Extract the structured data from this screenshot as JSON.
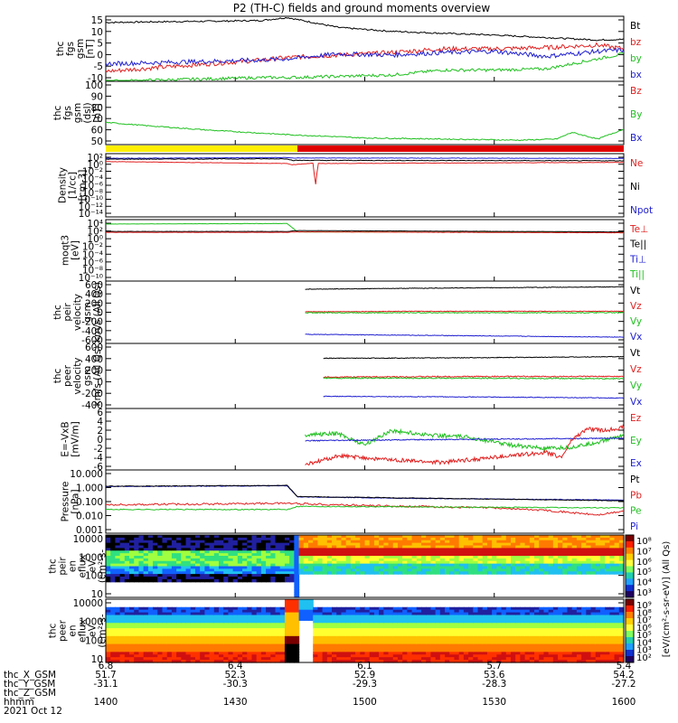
{
  "title": "P2 (TH-C) fields and ground moments overview",
  "chart_data": [
    {
      "type": "line",
      "ylabel": [
        "thc",
        "fgs",
        "gsm",
        "[nT]"
      ],
      "ylim": [
        -10,
        16
      ],
      "yticks": [
        "15",
        "10",
        "5",
        "0",
        "-5",
        "-10"
      ],
      "legend": [
        {
          "label": "Bt",
          "color": "#000000"
        },
        {
          "label": "bz",
          "color": "#e02020"
        },
        {
          "label": "by",
          "color": "#20c020"
        },
        {
          "label": "bx",
          "color": "#2020d0"
        }
      ],
      "series": [
        {
          "name": "Bt",
          "color": "#000000",
          "x": [
            0,
            0.1,
            0.2,
            0.3,
            0.35,
            0.45,
            0.55,
            0.65,
            0.75,
            0.85,
            0.95,
            1
          ],
          "values": [
            13.5,
            13.8,
            14,
            14.3,
            15.5,
            11.5,
            10,
            9.2,
            8.5,
            7.5,
            6.5,
            6.8
          ],
          "noise": 0.3
        },
        {
          "name": "bz",
          "color": "#e02020",
          "x": [
            0,
            0.1,
            0.2,
            0.3,
            0.35,
            0.45,
            0.55,
            0.65,
            0.75,
            0.85,
            0.95,
            1
          ],
          "values": [
            -6,
            -4.5,
            -3,
            -1.5,
            -0.5,
            0.5,
            1.5,
            3,
            3,
            3.5,
            4.5,
            3
          ],
          "noise": 0.9
        },
        {
          "name": "by",
          "color": "#20c020",
          "x": [
            0,
            0.1,
            0.2,
            0.3,
            0.35,
            0.45,
            0.55,
            0.65,
            0.75,
            0.85,
            0.95,
            1
          ],
          "values": [
            -10,
            -9.5,
            -9,
            -8.5,
            -8.5,
            -8,
            -7.5,
            -5.5,
            -5.5,
            -5,
            -1,
            1
          ],
          "noise": 0.6
        },
        {
          "name": "bx",
          "color": "#2020d0",
          "x": [
            0,
            0.1,
            0.2,
            0.3,
            0.35,
            0.45,
            0.55,
            0.65,
            0.75,
            0.85,
            0.95,
            1
          ],
          "values": [
            -3,
            -2.5,
            -2,
            -1.5,
            -1,
            1,
            0.5,
            1.5,
            2,
            0,
            2,
            2.5
          ],
          "noise": 0.9
        }
      ]
    },
    {
      "type": "line",
      "ylabel": [
        "thc",
        "fgs",
        "gsm",
        "(dsl)",
        "[nT]"
      ],
      "ylim": [
        43,
        100
      ],
      "yticks": [
        "100",
        "90",
        "80",
        "70",
        "60",
        "50"
      ],
      "legend": [
        {
          "label": "Bz",
          "color": "#e02020"
        },
        {
          "label": "By",
          "color": "#20c020"
        },
        {
          "label": "Bx",
          "color": "#2020d0"
        }
      ],
      "series": [
        {
          "name": "By",
          "color": "#20c020",
          "x": [
            0,
            0.08,
            0.2,
            0.35,
            0.5,
            0.65,
            0.8,
            0.87,
            0.9,
            0.95,
            1
          ],
          "values": [
            63,
            60,
            56,
            52,
            49,
            48,
            47,
            48,
            54,
            48,
            57
          ],
          "noise": 0.5
        }
      ]
    },
    {
      "type": "line",
      "ylabel": [
        "Density",
        "[1/cc]",
        "[cm-3]"
      ],
      "ylog": true,
      "ylim": [
        -14,
        2
      ],
      "yticks": [
        "10²",
        "10⁰",
        "10⁻²",
        "10⁻⁴",
        "10⁻⁶",
        "10⁻⁸",
        "10⁻¹⁰",
        "10⁻¹²",
        "10⁻¹⁴"
      ],
      "legend": [
        {
          "label": "Ne",
          "color": "#e02020"
        },
        {
          "label": "Ni",
          "color": "#000000"
        },
        {
          "label": "Npot",
          "color": "#2020d0"
        }
      ],
      "series": [
        {
          "name": "Npot",
          "color": "#2020d0",
          "x": [
            0,
            0.35,
            0.36,
            1
          ],
          "values": [
            0.8,
            1.0,
            0.9,
            0.8
          ],
          "noise": 0.05
        },
        {
          "name": "Ni",
          "color": "#000000",
          "x": [
            0,
            0.35,
            0.36,
            1
          ],
          "values": [
            0.6,
            0.7,
            0.3,
            0.2
          ],
          "noise": 0.08
        },
        {
          "name": "Ne",
          "color": "#e02020",
          "x": [
            0,
            0.35,
            0.36,
            0.4,
            0.405,
            0.41,
            1
          ],
          "values": [
            0,
            -0.5,
            -0.8,
            -0.4,
            -6,
            -0.5,
            -0.2
          ],
          "noise": 0.05
        }
      ]
    },
    {
      "type": "line",
      "ylabel": [
        "moqt3",
        "[eV]"
      ],
      "ylog": true,
      "ylim": [
        -10,
        4
      ],
      "yticks": [
        "10⁴",
        "10²",
        "10⁰",
        "10⁻²",
        "10⁻⁴",
        "10⁻⁶",
        "10⁻⁸",
        "10⁻¹⁰"
      ],
      "legend": [
        {
          "label": "Te⊥",
          "color": "#e02020"
        },
        {
          "label": "Te||",
          "color": "#000000"
        },
        {
          "label": "Ti⊥",
          "color": "#2020d0"
        },
        {
          "label": "Ti||",
          "color": "#20c020"
        }
      ],
      "series": [
        {
          "name": "Ti||",
          "color": "#20c020",
          "x": [
            0,
            0.35,
            0.37,
            1
          ],
          "values": [
            3,
            3.1,
            1.2,
            1.1
          ],
          "noise": 0.03
        },
        {
          "name": "Te||",
          "color": "#000000",
          "x": [
            0,
            0.35,
            0.37,
            1
          ],
          "values": [
            1.3,
            1.3,
            1.5,
            1.2
          ],
          "noise": 0.03
        },
        {
          "name": "Te⊥",
          "color": "#e02020",
          "x": [
            0,
            0.35,
            0.37,
            1
          ],
          "values": [
            1.1,
            1.1,
            1.2,
            1.0
          ],
          "noise": 0.03
        }
      ]
    },
    {
      "type": "line",
      "ylabel": [
        "thc",
        "peir",
        "velocity",
        "gsm",
        "km/s (All Qs)"
      ],
      "ylim": [
        -650,
        650
      ],
      "yticks": [
        "600",
        "400",
        "200",
        "0",
        "-200",
        "-400",
        "-600"
      ],
      "legend": [
        {
          "label": "Vt",
          "color": "#000000"
        },
        {
          "label": "Vz",
          "color": "#e02020"
        },
        {
          "label": "Vy",
          "color": "#20c020"
        },
        {
          "label": "Vx",
          "color": "#2020d0"
        }
      ],
      "series": [
        {
          "name": "Vt",
          "color": "#000000",
          "x": [
            0.385,
            0.6,
            1
          ],
          "values": [
            480,
            500,
            530
          ],
          "noise": 6
        },
        {
          "name": "Vz",
          "color": "#e02020",
          "x": [
            0.385,
            0.6,
            1
          ],
          "values": [
            10,
            20,
            20
          ],
          "noise": 6
        },
        {
          "name": "Vy",
          "color": "#20c020",
          "x": [
            0.385,
            0.6,
            1
          ],
          "values": [
            -10,
            -10,
            -10
          ],
          "noise": 10
        },
        {
          "name": "Vx",
          "color": "#2020d0",
          "x": [
            0.385,
            0.6,
            1
          ],
          "values": [
            -460,
            -480,
            -520
          ],
          "noise": 6
        }
      ]
    },
    {
      "type": "line",
      "ylabel": [
        "thc",
        "peer",
        "velocity",
        "gsm",
        "km/s (All Qs)"
      ],
      "ylim": [
        -560,
        620
      ],
      "yticks": [
        "600",
        "400",
        "200",
        "0",
        "-200",
        "-400"
      ],
      "legend": [
        {
          "label": "Vt",
          "color": "#000000"
        },
        {
          "label": "Vz",
          "color": "#e02020"
        },
        {
          "label": "Vy",
          "color": "#20c020"
        },
        {
          "label": "Vx",
          "color": "#2020d0"
        }
      ],
      "series": [
        {
          "name": "Vt",
          "color": "#000000",
          "x": [
            0.42,
            0.7,
            1
          ],
          "values": [
            350,
            360,
            380
          ],
          "noise": 6
        },
        {
          "name": "Vz",
          "color": "#e02020",
          "x": [
            0.42,
            0.7,
            1
          ],
          "values": [
            10,
            20,
            20
          ],
          "noise": 10
        },
        {
          "name": "Vy",
          "color": "#20c020",
          "x": [
            0.42,
            0.7,
            1
          ],
          "values": [
            -10,
            -10,
            -20
          ],
          "noise": 10
        },
        {
          "name": "Vx",
          "color": "#2020d0",
          "x": [
            0.42,
            0.7,
            1
          ],
          "values": [
            -340,
            -350,
            -370
          ],
          "noise": 6
        }
      ]
    },
    {
      "type": "line",
      "ylabel": [
        "E=-VxB",
        "[mV/m]"
      ],
      "ylim": [
        -6,
        6.2
      ],
      "yticks": [
        "6",
        "4",
        "2",
        "0",
        "-2",
        "-4",
        "-6"
      ],
      "legend": [
        {
          "label": "Ez",
          "color": "#e02020"
        },
        {
          "label": "Ey",
          "color": "#20c020"
        },
        {
          "label": "Ex",
          "color": "#2020d0"
        }
      ],
      "series": [
        {
          "name": "Ey",
          "color": "#20c020",
          "x": [
            0.385,
            0.45,
            0.5,
            0.55,
            0.62,
            0.7,
            0.78,
            0.85,
            0.9,
            0.95,
            1
          ],
          "values": [
            1,
            1.2,
            -1,
            1.8,
            1,
            0.5,
            -1,
            -1.8,
            -1.5,
            -0.5,
            1
          ],
          "noise": 0.4
        },
        {
          "name": "Ex",
          "color": "#2020d0",
          "x": [
            0.385,
            0.6,
            1
          ],
          "values": [
            -0.2,
            0,
            0.3
          ],
          "noise": 0.1
        },
        {
          "name": "Ez",
          "color": "#e02020",
          "x": [
            0.385,
            0.45,
            0.55,
            0.65,
            0.75,
            0.85,
            0.88,
            0.9,
            0.93,
            0.96,
            1
          ],
          "values": [
            -5,
            -3.2,
            -4,
            -4.5,
            -3.5,
            -2.5,
            -3.5,
            0,
            2.2,
            1.8,
            2.5
          ],
          "noise": 0.4
        }
      ]
    },
    {
      "type": "line",
      "ylabel": [
        "Pressure",
        "[nPa]"
      ],
      "ylog": true,
      "ylim": [
        -3,
        1
      ],
      "yticks": [
        "10.000",
        "1.000",
        "0.100",
        "0.010",
        "0.001"
      ],
      "legend": [
        {
          "label": "Pt",
          "color": "#000000"
        },
        {
          "label": "Pb",
          "color": "#e02020"
        },
        {
          "label": "Pe",
          "color": "#20c020"
        },
        {
          "label": "Pi",
          "color": "#2020d0"
        }
      ],
      "series": [
        {
          "name": "Pi",
          "color": "#2020d0",
          "x": [
            0,
            0.35,
            0.37,
            0.6,
            1
          ],
          "values": [
            -0.05,
            0,
            -0.7,
            -0.8,
            -0.9
          ],
          "noise": 0.02
        },
        {
          "name": "Pt",
          "color": "#000000",
          "x": [
            0,
            0.35,
            0.37,
            0.6,
            1
          ],
          "values": [
            -0.03,
            0.02,
            -0.68,
            -0.78,
            -0.95
          ],
          "noise": 0.02
        },
        {
          "name": "Pb",
          "color": "#e02020",
          "x": [
            0,
            0.2,
            0.35,
            0.5,
            0.75,
            0.85,
            0.95,
            1
          ],
          "values": [
            -1.2,
            -1.15,
            -1.1,
            -1.25,
            -1.4,
            -1.55,
            -1.85,
            -1.6
          ],
          "noise": 0.06
        },
        {
          "name": "Pe",
          "color": "#20c020",
          "x": [
            0,
            0.35,
            0.37,
            1
          ],
          "values": [
            -1.5,
            -1.5,
            -1.3,
            -1.4
          ],
          "noise": 0.03
        }
      ]
    },
    {
      "type": "heatmap",
      "ylabel": [
        "thc",
        "peir",
        "en",
        "eflux",
        "eV",
        "(cm²-s-",
        "sr-eV)"
      ],
      "ylog": true,
      "yticks": [
        "10000",
        "1000",
        "100",
        "10"
      ],
      "colorbar": {
        "label": "[eV/(cm²-s-sr-eV)] (All Qs)",
        "ticks": [
          "10⁸",
          "10⁷",
          "10⁶",
          "10⁵",
          "10⁴",
          "10³"
        ]
      }
    },
    {
      "type": "heatmap",
      "ylabel": [
        "thc",
        "peer",
        "en",
        "eflux",
        "eV",
        "(cm²-s-",
        "sr-eV)"
      ],
      "ylog": true,
      "yticks": [
        "10000",
        "1000",
        "100",
        "10"
      ],
      "colorbar": {
        "label": "[eV/(cm²-s-sr-eV)] (All Qs)",
        "ticks": [
          "10⁹",
          "10⁸",
          "10⁷",
          "10⁶",
          "10⁵",
          "10⁴",
          "10³",
          "10²"
        ]
      }
    }
  ],
  "xaxis": {
    "rows": [
      {
        "label": "thc_X_GSM",
        "values": [
          "51.7",
          "52.3",
          "52.9",
          "53.6",
          "54.2"
        ]
      },
      {
        "label": "thc_Y_GSM",
        "values": [
          "-31.1",
          "-30.3",
          "-29.3",
          "-28.3",
          "-27.2"
        ]
      },
      {
        "label": "thc_Z_GSM",
        "values": [
          "6.8",
          "6.4",
          "6.1",
          "5.7",
          "5.4"
        ]
      },
      {
        "label": "hhmm",
        "values": [
          "1400",
          "1430",
          "1500",
          "1530",
          "1600"
        ]
      }
    ],
    "date": "2021 Oct 12"
  },
  "status_bar": {
    "segments": [
      {
        "from": 0,
        "to": 0.37,
        "color": "#ffee00"
      },
      {
        "from": 0.37,
        "to": 1,
        "color": "#e00000"
      }
    ]
  }
}
